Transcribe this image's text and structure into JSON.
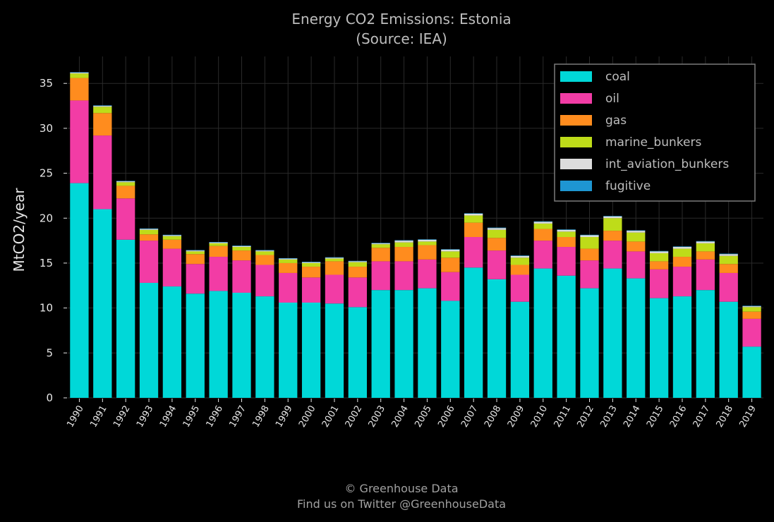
{
  "chart_data": {
    "type": "bar",
    "stacked": true,
    "title": "Energy CO2 Emissions: Estonia",
    "subtitle": "(Source: IEA)",
    "xlabel": "",
    "ylabel": "MtCO2/year",
    "ylim": [
      0,
      38
    ],
    "yticks": [
      0,
      5,
      10,
      15,
      20,
      25,
      30,
      35
    ],
    "grid": true,
    "legend_position": "top-right",
    "categories": [
      "1990",
      "1991",
      "1992",
      "1993",
      "1994",
      "1995",
      "1996",
      "1997",
      "1998",
      "1999",
      "2000",
      "2001",
      "2002",
      "2003",
      "2004",
      "2005",
      "2006",
      "2007",
      "2008",
      "2009",
      "2010",
      "2011",
      "2012",
      "2013",
      "2014",
      "2015",
      "2016",
      "2017",
      "2018",
      "2019"
    ],
    "series": [
      {
        "name": "coal",
        "color": "#00d8d8",
        "values": [
          23.9,
          21.0,
          17.6,
          12.8,
          12.4,
          11.6,
          11.9,
          11.7,
          11.3,
          10.6,
          10.6,
          10.5,
          10.1,
          12.0,
          12.0,
          12.2,
          10.8,
          14.5,
          13.2,
          10.7,
          14.4,
          13.6,
          12.2,
          14.4,
          13.3,
          11.1,
          11.3,
          12.0,
          10.7,
          5.7
        ]
      },
      {
        "name": "oil",
        "color": "#f23ca5",
        "values": [
          9.2,
          8.2,
          4.6,
          4.7,
          4.2,
          3.3,
          3.8,
          3.6,
          3.5,
          3.3,
          2.8,
          3.2,
          3.3,
          3.2,
          3.2,
          3.2,
          3.2,
          3.4,
          3.2,
          3.0,
          3.1,
          3.2,
          3.1,
          3.1,
          3.0,
          3.2,
          3.3,
          3.4,
          3.2,
          3.1
        ]
      },
      {
        "name": "gas",
        "color": "#ff8c1e",
        "values": [
          2.5,
          2.5,
          1.4,
          0.7,
          1.0,
          1.1,
          1.2,
          1.1,
          1.1,
          1.1,
          1.2,
          1.5,
          1.2,
          1.5,
          1.6,
          1.6,
          1.6,
          1.6,
          1.4,
          1.1,
          1.3,
          1.1,
          1.3,
          1.1,
          1.1,
          0.9,
          1.1,
          0.9,
          1.0,
          0.8
        ]
      },
      {
        "name": "marine_bunkers",
        "color": "#bedc19",
        "values": [
          0.5,
          0.7,
          0.4,
          0.5,
          0.4,
          0.3,
          0.3,
          0.4,
          0.4,
          0.4,
          0.4,
          0.3,
          0.5,
          0.4,
          0.5,
          0.4,
          0.7,
          0.8,
          0.9,
          0.8,
          0.6,
          0.6,
          1.3,
          1.4,
          1.0,
          0.9,
          0.9,
          0.9,
          0.9,
          0.5
        ]
      },
      {
        "name": "int_aviation_bunkers",
        "color": "#dcdcdc",
        "values": [
          0.1,
          0.1,
          0.1,
          0.1,
          0.1,
          0.1,
          0.1,
          0.1,
          0.1,
          0.1,
          0.1,
          0.1,
          0.1,
          0.1,
          0.2,
          0.2,
          0.2,
          0.2,
          0.2,
          0.2,
          0.2,
          0.2,
          0.2,
          0.2,
          0.2,
          0.2,
          0.2,
          0.2,
          0.2,
          0.1
        ]
      },
      {
        "name": "fugitive",
        "color": "#1e96d2",
        "values": [
          0.05,
          0.05,
          0.05,
          0.05,
          0.05,
          0.05,
          0.05,
          0.05,
          0.05,
          0.05,
          0.05,
          0.05,
          0.05,
          0.05,
          0.05,
          0.05,
          0.05,
          0.05,
          0.05,
          0.05,
          0.05,
          0.05,
          0.05,
          0.05,
          0.05,
          0.05,
          0.05,
          0.05,
          0.05,
          0.05
        ]
      }
    ]
  },
  "footer": {
    "line1": "© Greenhouse Data",
    "line2": "Find us on Twitter @GreenhouseData"
  }
}
